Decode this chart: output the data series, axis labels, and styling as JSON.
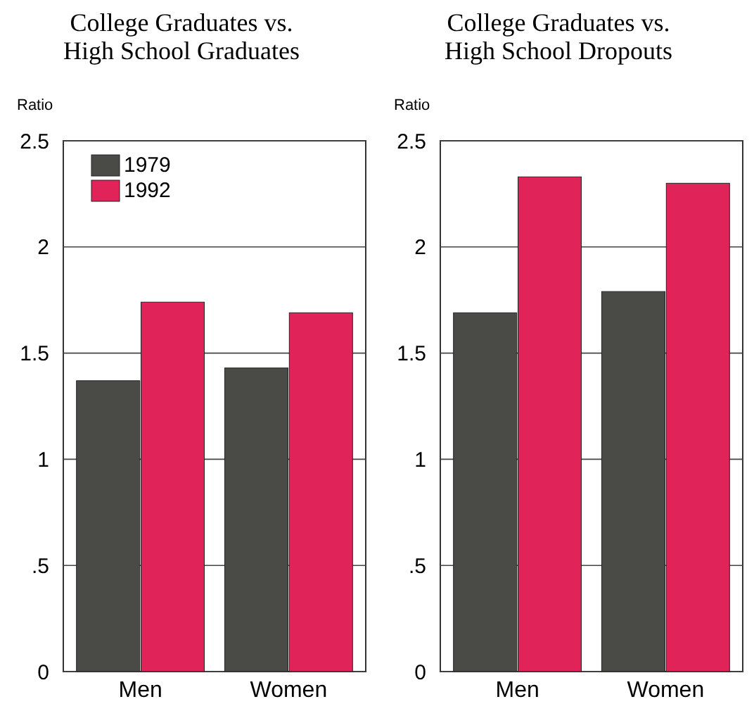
{
  "chart_data": [
    {
      "type": "bar",
      "title": "College Graduates vs.\nHigh School  Graduates",
      "ylabel": "Ratio",
      "categories": [
        "Men",
        "Women"
      ],
      "series": [
        {
          "name": "1979",
          "color": "#4a4a47",
          "values": [
            1.37,
            1.43
          ]
        },
        {
          "name": "1992",
          "color": "#e0245a",
          "values": [
            1.74,
            1.69
          ]
        }
      ],
      "ylim": [
        0,
        2.5
      ],
      "yticks": [
        0,
        {
          "value": 0.5,
          "label": ".5"
        },
        1,
        1.5,
        2,
        2.5
      ],
      "grid": "y",
      "legend": "top left"
    },
    {
      "type": "bar",
      "title": "College Graduates vs.\nHigh School Dropouts",
      "ylabel": "Ratio",
      "categories": [
        "Men",
        "Women"
      ],
      "series": [
        {
          "color": "#4a4a47",
          "values": [
            1.69,
            1.79
          ]
        },
        {
          "color": "#e0245a",
          "values": [
            2.33,
            2.3
          ]
        }
      ],
      "ylim": [
        0,
        2.5
      ],
      "yticks": [
        0,
        {
          "value": 0.5,
          "label": ".5"
        },
        1,
        1.5,
        2,
        2.5
      ],
      "grid": "y",
      "legend": false
    }
  ]
}
